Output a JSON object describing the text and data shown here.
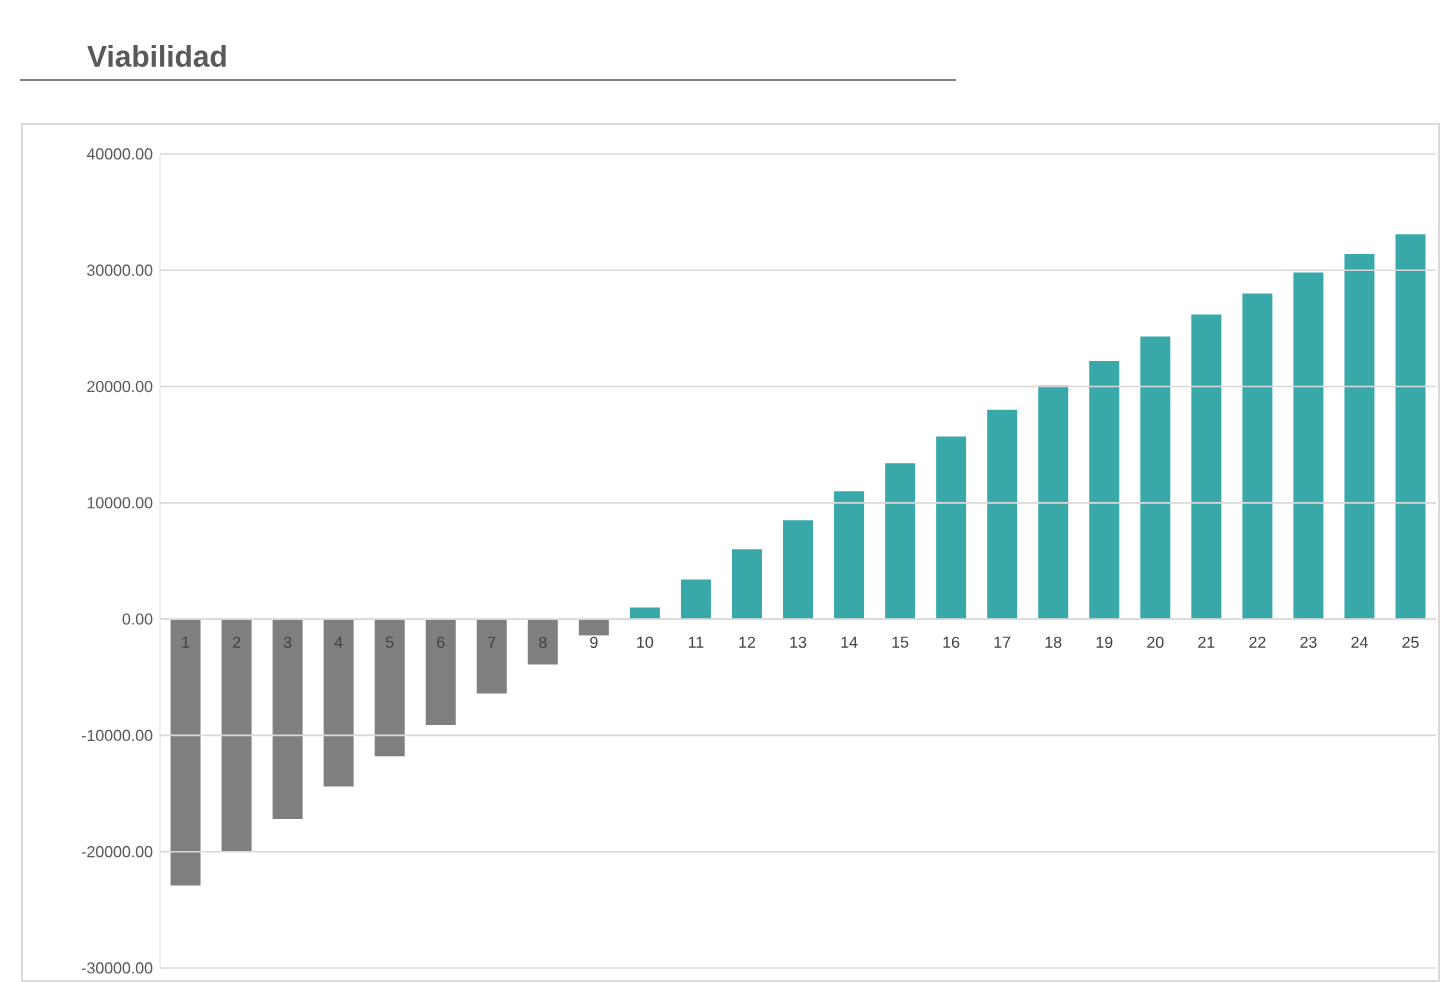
{
  "chart_data": {
    "type": "bar",
    "title": "Viabilidad",
    "categories": [
      "1",
      "2",
      "3",
      "4",
      "5",
      "6",
      "7",
      "8",
      "9",
      "10",
      "11",
      "12",
      "13",
      "14",
      "15",
      "16",
      "17",
      "18",
      "19",
      "20",
      "21",
      "22",
      "23",
      "24",
      "25"
    ],
    "values": [
      -22900,
      -20000,
      -17200,
      -14400,
      -11800,
      -9100,
      -6400,
      -3900,
      -1400,
      1000,
      3400,
      6000,
      8500,
      11000,
      13400,
      15700,
      18000,
      20100,
      22200,
      24300,
      26200,
      28000,
      29800,
      31400,
      33100
    ],
    "colors": [
      "#7f7f7f",
      "#7f7f7f",
      "#7f7f7f",
      "#7f7f7f",
      "#7f7f7f",
      "#7f7f7f",
      "#7f7f7f",
      "#7f7f7f",
      "#7f7f7f",
      "#38a9a8",
      "#38a9a8",
      "#38a9a8",
      "#38a9a8",
      "#38a9a8",
      "#38a9a8",
      "#38a9a8",
      "#38a9a8",
      "#38a9a8",
      "#38a9a8",
      "#38a9a8",
      "#38a9a8",
      "#38a9a8",
      "#38a9a8",
      "#38a9a8",
      "#38a9a8"
    ],
    "ylim": [
      -30000,
      40000
    ],
    "yticks": [
      {
        "value": -30000,
        "label": "-30000.00"
      },
      {
        "value": -20000,
        "label": "-20000.00"
      },
      {
        "value": -10000,
        "label": "-10000.00"
      },
      {
        "value": 0,
        "label": "0.00"
      },
      {
        "value": 10000,
        "label": "10000.00"
      },
      {
        "value": 20000,
        "label": "20000.00"
      },
      {
        "value": 30000,
        "label": "30000.00"
      },
      {
        "value": 40000,
        "label": "40000.00"
      }
    ],
    "grid": "y"
  }
}
